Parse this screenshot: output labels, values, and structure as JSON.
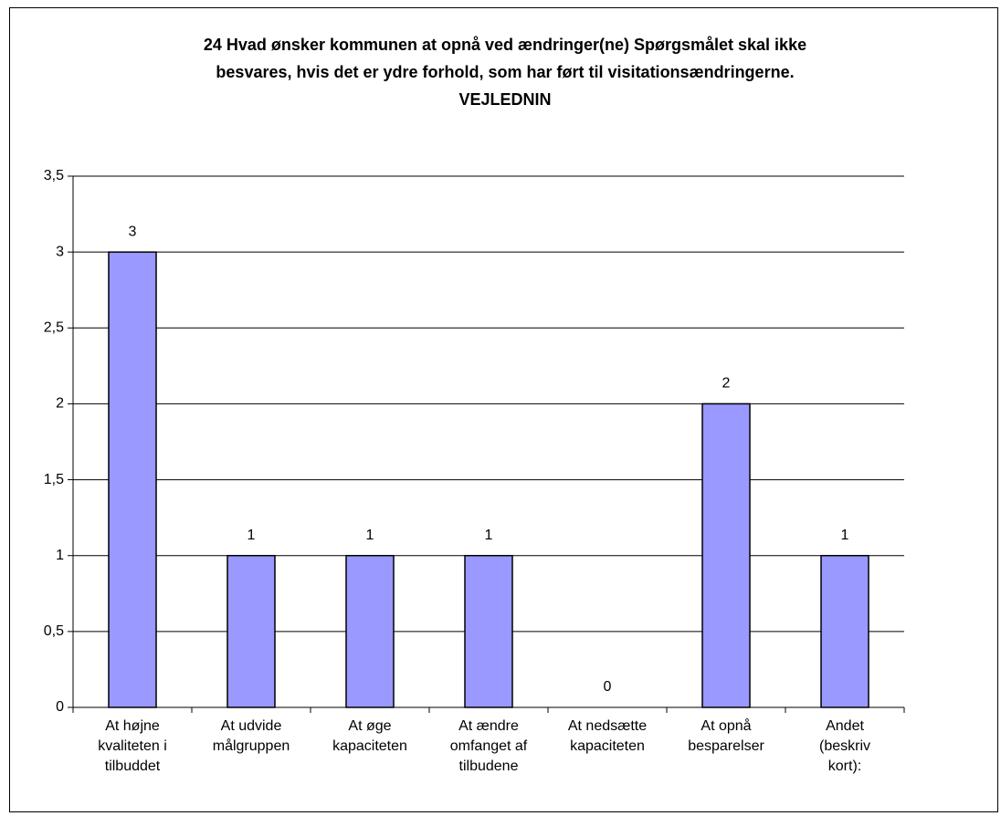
{
  "chart_data": {
    "type": "bar",
    "title": "24 Hvad ønsker kommunen at opnå ved ændringer(ne) Spørgsmålet skal ikke\nbesvares, hvis det er ydre forhold, som har ført til visitationsændringerne.\nVEJLEDNIN",
    "categories": [
      "At højne\nkvaliteten i\ntilbuddet",
      "At udvide\nmålgruppen",
      "At øge\nkapaciteten",
      "At ændre\nomfanget af\ntilbudene",
      "At nedsætte\nkapaciteten",
      "At opnå\nbesparelser",
      "Andet\n(beskriv\nkort):"
    ],
    "values": [
      3,
      1,
      1,
      1,
      0,
      2,
      1
    ],
    "color": "#9999ff",
    "ylim": [
      0,
      3.5
    ],
    "yticks": [
      0,
      {
        "value": 0.5,
        "label": "0,5"
      },
      1,
      {
        "value": 1.5,
        "label": "1,5"
      },
      2,
      {
        "value": 2.5,
        "label": "2,5"
      },
      3,
      {
        "value": 3.5,
        "label": "3,5"
      }
    ],
    "grid": true
  }
}
